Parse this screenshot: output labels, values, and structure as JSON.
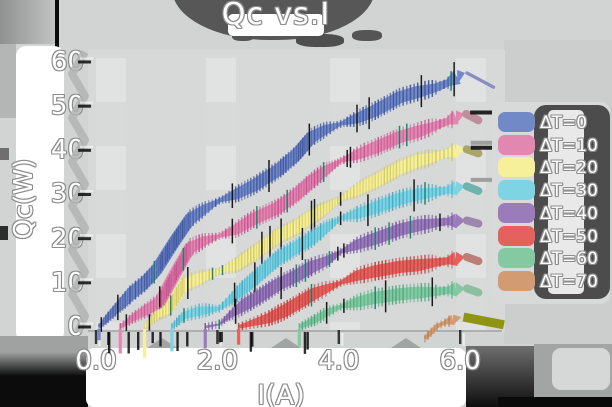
{
  "chart_data": {
    "type": "line",
    "title": "Qc vs.I",
    "xlabel": "I(A)",
    "ylabel": "Qc(W)",
    "xlim": [
      -0.15,
      6.75
    ],
    "ylim": [
      -1,
      62
    ],
    "grid": false,
    "legend_position": "right",
    "xticks": [
      {
        "value": 0,
        "label": "0.0"
      },
      {
        "value": 2,
        "label": "2.0"
      },
      {
        "value": 4,
        "label": "4.0"
      },
      {
        "value": 6,
        "label": "6.0"
      }
    ],
    "yticks": [
      {
        "value": 0,
        "label": "0"
      },
      {
        "value": 10,
        "label": "10"
      },
      {
        "value": 20,
        "label": "20"
      },
      {
        "value": 30,
        "label": "30"
      },
      {
        "value": 40,
        "label": "40"
      },
      {
        "value": 50,
        "label": "50"
      },
      {
        "value": 60,
        "label": "60"
      }
    ],
    "series": [
      {
        "name": "ΔT=0",
        "color": "#7289c8",
        "tick_color": "#3d549e",
        "tail_color": "#878dbe",
        "tail_style": "line",
        "tail_dashes": [],
        "drop": 3,
        "points": [
          [
            0.05,
            0
          ],
          [
            0.2,
            2.2
          ],
          [
            0.4,
            5
          ],
          [
            0.6,
            7.8
          ],
          [
            0.8,
            10
          ],
          [
            1.0,
            13
          ],
          [
            1.3,
            19.5
          ],
          [
            1.55,
            24.5
          ],
          [
            1.8,
            26.8
          ],
          [
            2.03,
            28.6
          ],
          [
            2.3,
            30
          ],
          [
            2.6,
            32
          ],
          [
            3.0,
            35.5
          ],
          [
            3.3,
            39
          ],
          [
            3.55,
            43
          ],
          [
            3.8,
            44.8
          ],
          [
            4.03,
            46
          ],
          [
            4.3,
            47.2
          ],
          [
            4.6,
            49
          ],
          [
            5.0,
            52
          ],
          [
            5.3,
            53.2
          ],
          [
            5.6,
            54.2
          ],
          [
            5.8,
            55.3
          ],
          [
            5.95,
            56.5
          ]
        ],
        "tail": [
          6.55,
          54.3
        ]
      },
      {
        "name": "ΔT=10",
        "color": "#e287b0",
        "tick_color": "#c2508e",
        "tail_color": "#bd8e9b",
        "tail_style": "nub",
        "tail_dashes": [
          "black"
        ],
        "drop": 6,
        "points": [
          [
            0.4,
            0
          ],
          [
            0.6,
            2
          ],
          [
            0.85,
            4
          ],
          [
            1.05,
            5.6
          ],
          [
            1.3,
            12
          ],
          [
            1.55,
            18
          ],
          [
            1.8,
            19.6
          ],
          [
            2.03,
            20.6
          ],
          [
            2.3,
            22
          ],
          [
            2.6,
            24.5
          ],
          [
            3.0,
            27
          ],
          [
            3.3,
            30
          ],
          [
            3.55,
            33
          ],
          [
            3.8,
            35.6
          ],
          [
            4.03,
            37.6
          ],
          [
            4.3,
            39
          ],
          [
            4.6,
            40.6
          ],
          [
            5.0,
            43
          ],
          [
            5.3,
            44.2
          ],
          [
            5.6,
            45.6
          ],
          [
            5.8,
            46.6
          ],
          [
            5.93,
            47.4
          ]
        ],
        "tail": [
          6.3,
          46.8
        ]
      },
      {
        "name": "ΔT=20",
        "color": "#f7f09b",
        "tick_color": "#cfc75f",
        "tail_color": "#a8a569",
        "tail_style": "nub",
        "tail_dashes": [
          "gray",
          "black"
        ],
        "drop": 8,
        "points": [
          [
            0.8,
            0
          ],
          [
            1.0,
            2.6
          ],
          [
            1.2,
            4.2
          ],
          [
            1.45,
            9.6
          ],
          [
            1.7,
            11
          ],
          [
            2.03,
            12.6
          ],
          [
            2.3,
            14
          ],
          [
            2.6,
            16.6
          ],
          [
            3.0,
            20.6
          ],
          [
            3.3,
            22.6
          ],
          [
            3.55,
            25
          ],
          [
            3.8,
            27
          ],
          [
            4.03,
            29
          ],
          [
            4.3,
            31
          ],
          [
            4.6,
            33
          ],
          [
            5.0,
            36
          ],
          [
            5.3,
            37.6
          ],
          [
            5.6,
            38.6
          ],
          [
            5.8,
            39.4
          ],
          [
            5.93,
            39.8
          ]
        ],
        "tail": [
          6.3,
          39.3
        ]
      },
      {
        "name": "ΔT=30",
        "color": "#7fd4e3",
        "tick_color": "#3fa9c4",
        "tail_color": "#6fb3ad",
        "tail_style": "nub",
        "tail_dashes": [
          "gray"
        ],
        "drop": 5.5,
        "points": [
          [
            1.25,
            0
          ],
          [
            1.45,
            2.6
          ],
          [
            1.7,
            3.6
          ],
          [
            2.03,
            4.2
          ],
          [
            2.2,
            6
          ],
          [
            2.45,
            9
          ],
          [
            2.7,
            12
          ],
          [
            3.0,
            15.6
          ],
          [
            3.3,
            18
          ],
          [
            3.55,
            20
          ],
          [
            3.8,
            22.6
          ],
          [
            4.03,
            24.6
          ],
          [
            4.3,
            25.6
          ],
          [
            4.6,
            27
          ],
          [
            5.0,
            29
          ],
          [
            5.3,
            30
          ],
          [
            5.6,
            30.6
          ],
          [
            5.8,
            31
          ],
          [
            5.93,
            31.4
          ]
        ],
        "tail": [
          6.3,
          30.8
        ]
      },
      {
        "name": "ΔT=40",
        "color": "#9a7cbb",
        "tick_color": "#71519c",
        "tail_color": "#9c86ae",
        "tail_style": "nub",
        "tail_dashes": [],
        "drop": 4.8,
        "points": [
          [
            1.8,
            0
          ],
          [
            2.03,
            0.6
          ],
          [
            2.2,
            2.6
          ],
          [
            2.45,
            5
          ],
          [
            2.7,
            7
          ],
          [
            3.0,
            9.6
          ],
          [
            3.3,
            11.6
          ],
          [
            3.55,
            13.6
          ],
          [
            3.8,
            15
          ],
          [
            4.03,
            17
          ],
          [
            4.3,
            18.6
          ],
          [
            4.6,
            20
          ],
          [
            5.0,
            22
          ],
          [
            5.3,
            23
          ],
          [
            5.6,
            23.6
          ],
          [
            5.8,
            23.9
          ],
          [
            5.93,
            24
          ]
        ],
        "tail": [
          6.3,
          23.4
        ]
      },
      {
        "name": "ΔT=50",
        "color": "#e4615e",
        "tick_color": "#bf3e3c",
        "tail_color": "#bd7e76",
        "tail_style": "nub",
        "tail_dashes": [],
        "drop": 4,
        "points": [
          [
            2.35,
            0
          ],
          [
            2.6,
            1
          ],
          [
            2.85,
            2
          ],
          [
            3.1,
            3.6
          ],
          [
            3.35,
            5.6
          ],
          [
            3.6,
            7.6
          ],
          [
            3.85,
            9
          ],
          [
            4.03,
            10
          ],
          [
            4.3,
            11.6
          ],
          [
            4.6,
            12.6
          ],
          [
            5.0,
            13.6
          ],
          [
            5.3,
            14
          ],
          [
            5.6,
            14.6
          ],
          [
            5.8,
            15
          ],
          [
            5.93,
            15.4
          ]
        ],
        "tail": [
          6.3,
          14.9
        ]
      },
      {
        "name": "ΔT=60",
        "color": "#84c9a2",
        "tick_color": "#4aa87c",
        "tail_color": "#8cbf9f",
        "tail_style": "nub",
        "tail_dashes": [],
        "drop": 4.4,
        "points": [
          [
            3.35,
            0
          ],
          [
            3.6,
            1.6
          ],
          [
            3.85,
            3.6
          ],
          [
            4.03,
            4.6
          ],
          [
            4.3,
            5.6
          ],
          [
            4.6,
            6.6
          ],
          [
            5.0,
            7.4
          ],
          [
            5.3,
            7.8
          ],
          [
            5.6,
            8
          ],
          [
            5.8,
            8.3
          ],
          [
            5.93,
            8.5
          ]
        ],
        "tail": [
          6.3,
          7.8
        ]
      },
      {
        "name": "ΔT=70",
        "color": "#d29b72",
        "tick_color": "#b57948",
        "tail_color": "#8f9413",
        "tail_style": "band",
        "tail_dashes": [],
        "drop": 0,
        "points": [
          [
            5.42,
            -2.6
          ],
          [
            5.52,
            -1.2
          ],
          [
            5.62,
            0.2
          ],
          [
            5.75,
            1.0
          ],
          [
            5.88,
            1.6
          ]
        ],
        "tail": [
          6.72,
          0.5
        ]
      }
    ]
  }
}
